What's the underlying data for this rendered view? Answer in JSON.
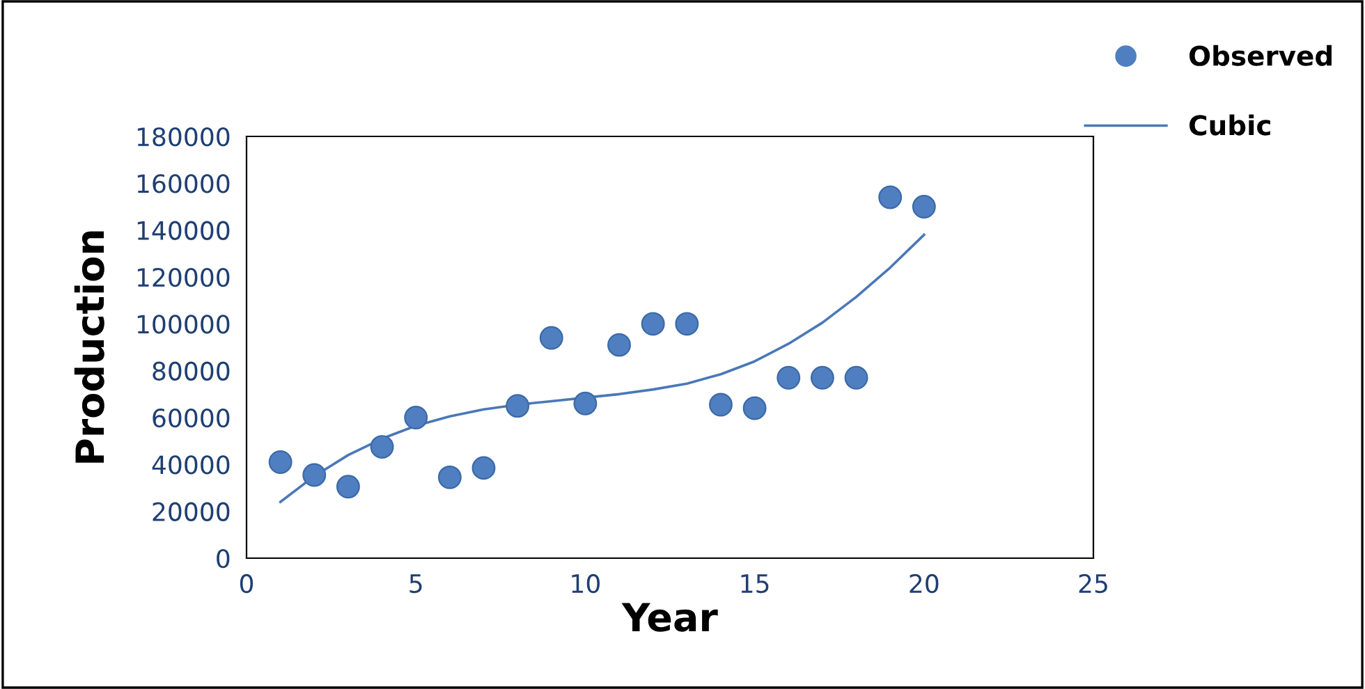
{
  "chart_data": {
    "type": "scatter",
    "xlabel": "Year",
    "ylabel": "Production",
    "xlim": [
      0,
      25
    ],
    "xticks": [
      0,
      5,
      10,
      15,
      20,
      25
    ],
    "ylim": [
      0,
      180000
    ],
    "yticks": [
      0,
      20000,
      40000,
      60000,
      80000,
      100000,
      120000,
      140000,
      160000,
      180000
    ],
    "grid": false,
    "legend": "top right",
    "series": [
      {
        "name": "Observed",
        "marker": "circle",
        "color": "#4f7fc0",
        "x": [
          1,
          2,
          3,
          4,
          5,
          6,
          7,
          8,
          9,
          10,
          11,
          12,
          13,
          14,
          15,
          16,
          17,
          18,
          19,
          20
        ],
        "values": [
          41000,
          35500,
          30500,
          47500,
          60000,
          34500,
          38500,
          65000,
          94000,
          66000,
          91000,
          100000,
          100000,
          65500,
          64000,
          77000,
          77000,
          77000,
          154000,
          150000
        ]
      },
      {
        "name": "Cubic",
        "type": "line",
        "marker": "none",
        "line_style": "solid",
        "color": "#4a78b8",
        "x": [
          1,
          2,
          3,
          4,
          5,
          6,
          7,
          8,
          9,
          10,
          11,
          12,
          13,
          14,
          15,
          16,
          17,
          18,
          19,
          20
        ],
        "values": [
          24000,
          35000,
          44000,
          51000,
          56500,
          60500,
          63500,
          65500,
          67000,
          68500,
          70000,
          72000,
          74500,
          78500,
          84000,
          91500,
          100500,
          111500,
          124000,
          138000
        ]
      }
    ]
  }
}
